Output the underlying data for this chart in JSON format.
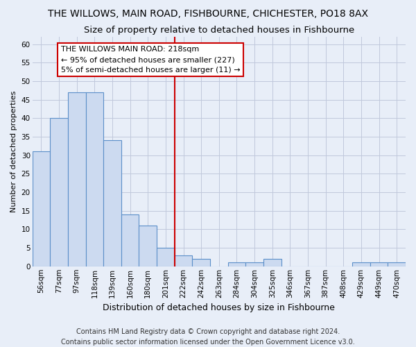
{
  "title": "THE WILLOWS, MAIN ROAD, FISHBOURNE, CHICHESTER, PO18 8AX",
  "subtitle": "Size of property relative to detached houses in Fishbourne",
  "xlabel": "Distribution of detached houses by size in Fishbourne",
  "ylabel": "Number of detached properties",
  "categories": [
    "56sqm",
    "77sqm",
    "97sqm",
    "118sqm",
    "139sqm",
    "160sqm",
    "180sqm",
    "201sqm",
    "222sqm",
    "242sqm",
    "263sqm",
    "284sqm",
    "304sqm",
    "325sqm",
    "346sqm",
    "367sqm",
    "387sqm",
    "408sqm",
    "429sqm",
    "449sqm",
    "470sqm"
  ],
  "values": [
    31,
    40,
    47,
    47,
    34,
    14,
    11,
    5,
    3,
    2,
    0,
    1,
    1,
    2,
    0,
    0,
    0,
    0,
    1,
    1,
    1
  ],
  "bar_color": "#ccdaf0",
  "bar_edge_color": "#5b8fc9",
  "vline_x_index": 8,
  "vline_color": "#cc0000",
  "annotation_text": "THE WILLOWS MAIN ROAD: 218sqm\n← 95% of detached houses are smaller (227)\n5% of semi-detached houses are larger (11) →",
  "annotation_box_color": "#ffffff",
  "annotation_box_edge_color": "#cc0000",
  "ylim": [
    0,
    62
  ],
  "yticks": [
    0,
    5,
    10,
    15,
    20,
    25,
    30,
    35,
    40,
    45,
    50,
    55,
    60
  ],
  "footnote": "Contains HM Land Registry data © Crown copyright and database right 2024.\nContains public sector information licensed under the Open Government Licence v3.0.",
  "background_color": "#e8eef8",
  "grid_color": "#c0c8dc",
  "title_fontsize": 10,
  "subtitle_fontsize": 9.5,
  "xlabel_fontsize": 9,
  "ylabel_fontsize": 8,
  "tick_fontsize": 7.5,
  "annotation_fontsize": 8,
  "footnote_fontsize": 7
}
